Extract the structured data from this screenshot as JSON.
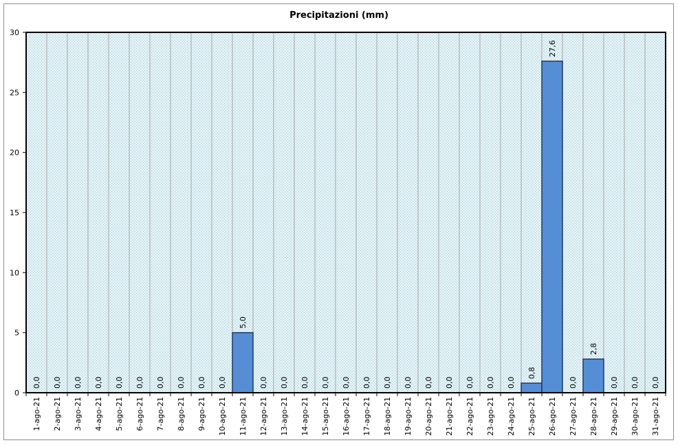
{
  "chart_data": {
    "type": "bar",
    "title": "Precipitazioni (mm)",
    "xlabel": "",
    "ylabel": "",
    "ylim": [
      0,
      30
    ],
    "yticks": [
      0,
      5,
      10,
      15,
      20,
      25,
      30
    ],
    "grid": true,
    "categories": [
      "1-ago-21",
      "2-ago-21",
      "3-ago-21",
      "4-ago-21",
      "5-ago-21",
      "6-ago-21",
      "7-ago-21",
      "8-ago-21",
      "9-ago-21",
      "10-ago-21",
      "11-ago-21",
      "12-ago-21",
      "13-ago-21",
      "14-ago-21",
      "15-ago-21",
      "16-ago-21",
      "17-ago-21",
      "18-ago-21",
      "19-ago-21",
      "20-ago-21",
      "21-ago-21",
      "22-ago-21",
      "23-ago-21",
      "24-ago-21",
      "25-ago-21",
      "26-ago-21",
      "27-ago-21",
      "28-ago-21",
      "29-ago-21",
      "30-ago-21",
      "31-ago-21"
    ],
    "values": [
      0,
      0,
      0,
      0,
      0,
      0,
      0,
      0,
      0,
      0,
      5.0,
      0,
      0,
      0,
      0,
      0,
      0,
      0,
      0,
      0,
      0,
      0,
      0,
      0,
      0.8,
      27.6,
      0,
      2.8,
      0,
      0,
      0
    ],
    "data_labels": [
      "0,0",
      "0,0",
      "0,0",
      "0,0",
      "0,0",
      "0,0",
      "0,0",
      "0,0",
      "0,0",
      "0,0",
      "5,0",
      "0,0",
      "0,0",
      "0,0",
      "0,0",
      "0,0",
      "0,0",
      "0,0",
      "0,0",
      "0,0",
      "0,0",
      "0,0",
      "0,0",
      "0,0",
      "0,8",
      "27,6",
      "0,0",
      "2,8",
      "0,0",
      "0,0",
      "0,0"
    ],
    "colors": {
      "bar_fill": "#558ed5",
      "bar_stroke": "#1f3864",
      "plot_bg": "#dbeef4",
      "grid": "#a6a6a6"
    }
  }
}
